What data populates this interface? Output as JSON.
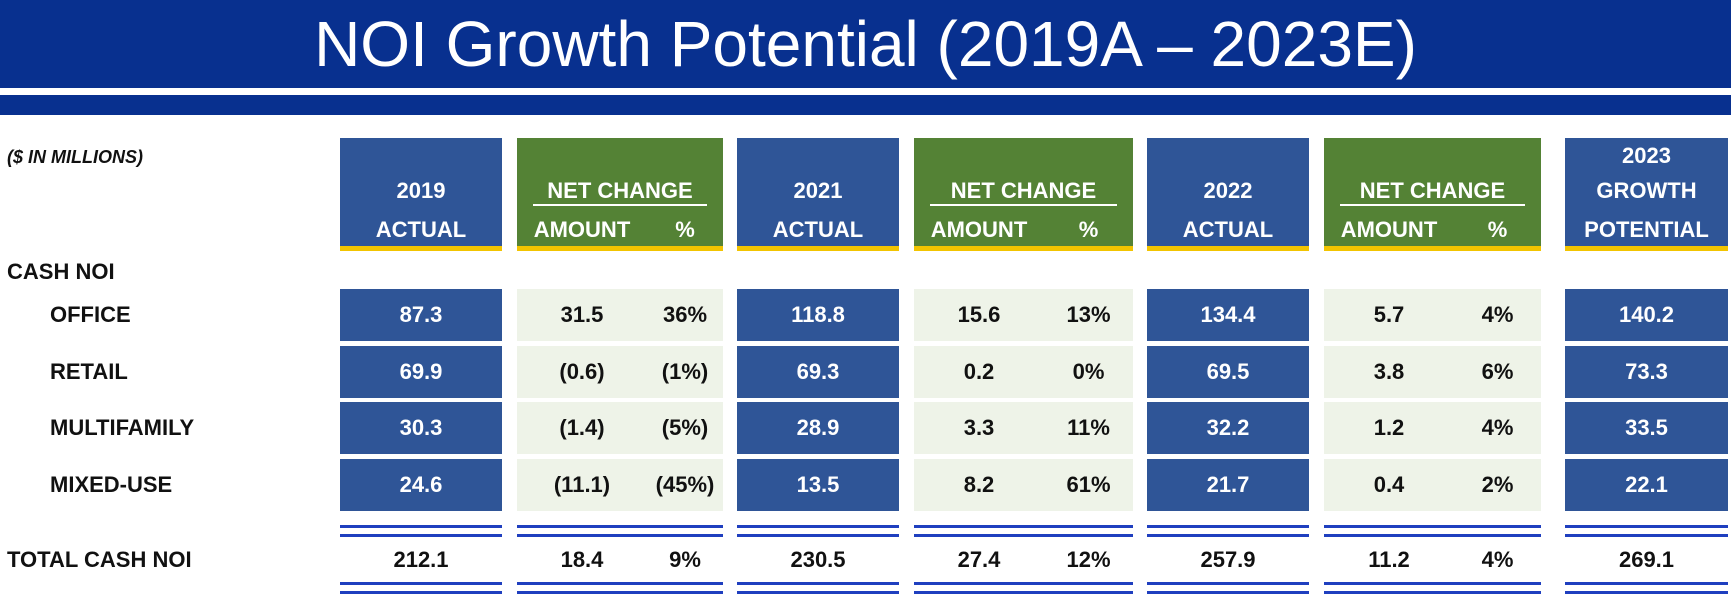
{
  "title": "NOI Growth Potential (2019A – 2023E)",
  "units_note": "($ IN MILLIONS)",
  "section_label": "CASH NOI",
  "colors": {
    "title_blue": "#08308f",
    "header_blue": "#2f5597",
    "header_green": "#548235",
    "underline_gold": "#f2c400",
    "light_cell": "#eef3e8"
  },
  "headers": {
    "y2019": [
      "2019",
      "ACTUAL"
    ],
    "y2021": [
      "2021",
      "ACTUAL"
    ],
    "y2022": [
      "2022",
      "ACTUAL"
    ],
    "y2023": [
      "2023",
      "GROWTH",
      "POTENTIAL"
    ],
    "net_change": "NET CHANGE",
    "amount": "AMOUNT",
    "pct": "%"
  },
  "chart_data": {
    "type": "table",
    "title": "NOI Growth Potential (2019A – 2023E)",
    "columns": [
      "2019 ACTUAL",
      "NET CHANGE AMOUNT",
      "NET CHANGE %",
      "2021 ACTUAL",
      "NET CHANGE AMOUNT",
      "NET CHANGE %",
      "2022 ACTUAL",
      "NET CHANGE AMOUNT",
      "NET CHANGE %",
      "2023 GROWTH POTENTIAL"
    ],
    "rows": [
      {
        "label": "OFFICE",
        "values": [
          "87.3",
          "31.5",
          "36%",
          "118.8",
          "15.6",
          "13%",
          "134.4",
          "5.7",
          "4%",
          "140.2"
        ]
      },
      {
        "label": "RETAIL",
        "values": [
          "69.9",
          "(0.6)",
          "(1%)",
          "69.3",
          "0.2",
          "0%",
          "69.5",
          "3.8",
          "6%",
          "73.3"
        ]
      },
      {
        "label": "MULTIFAMILY",
        "values": [
          "30.3",
          "(1.4)",
          "(5%)",
          "28.9",
          "3.3",
          "11%",
          "32.2",
          "1.2",
          "4%",
          "33.5"
        ]
      },
      {
        "label": "MIXED-USE",
        "values": [
          "24.6",
          "(11.1)",
          "(45%)",
          "13.5",
          "8.2",
          "61%",
          "21.7",
          "0.4",
          "2%",
          "22.1"
        ]
      }
    ],
    "total": {
      "label": "TOTAL CASH NOI",
      "values": [
        "212.1",
        "18.4",
        "9%",
        "230.5",
        "27.4",
        "12%",
        "257.9",
        "11.2",
        "4%",
        "269.1"
      ]
    }
  }
}
